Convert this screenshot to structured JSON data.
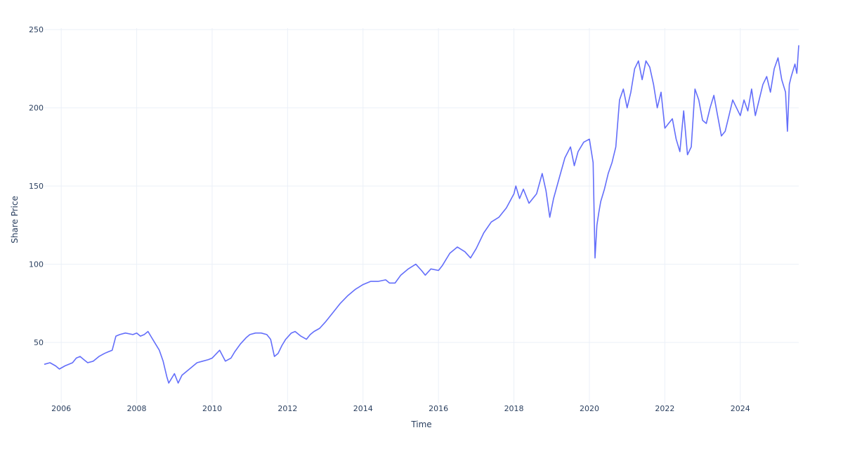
{
  "chart_data": {
    "type": "line",
    "title": "",
    "xlabel": "Time",
    "ylabel": "Share Price",
    "xlim": [
      2005.55,
      2025.55
    ],
    "ylim": [
      11,
      251
    ],
    "x_ticks": [
      2006,
      2008,
      2010,
      2012,
      2014,
      2016,
      2018,
      2020,
      2022,
      2024
    ],
    "x_tick_labels": [
      "2006",
      "2008",
      "2010",
      "2012",
      "2014",
      "2016",
      "2018",
      "2020",
      "2022",
      "2024"
    ],
    "y_ticks": [
      50,
      100,
      150,
      200,
      250
    ],
    "y_tick_labels": [
      "50",
      "100",
      "150",
      "200",
      "250"
    ],
    "grid": true,
    "line_color": "#636efa",
    "series": [
      {
        "x": [
          2005.55,
          2005.7,
          2005.85,
          2005.95,
          2006.1,
          2006.3,
          2006.4,
          2006.5,
          2006.6,
          2006.7,
          2006.85,
          2007.0,
          2007.15,
          2007.25,
          2007.35,
          2007.45,
          2007.55,
          2007.7,
          2007.9,
          2008.0,
          2008.1,
          2008.2,
          2008.3,
          2008.4,
          2008.5,
          2008.6,
          2008.7,
          2008.8,
          2008.85,
          2008.9,
          2009.0,
          2009.1,
          2009.2,
          2009.3,
          2009.4,
          2009.5,
          2009.6,
          2009.75,
          2009.9,
          2010.0,
          2010.2,
          2010.35,
          2010.5,
          2010.6,
          2010.75,
          2010.9,
          2011.0,
          2011.15,
          2011.3,
          2011.45,
          2011.55,
          2011.65,
          2011.75,
          2011.85,
          2011.95,
          2012.1,
          2012.2,
          2012.35,
          2012.5,
          2012.6,
          2012.7,
          2012.85,
          2013.0,
          2013.2,
          2013.4,
          2013.6,
          2013.8,
          2014.0,
          2014.2,
          2014.4,
          2014.6,
          2014.7,
          2014.85,
          2015.0,
          2015.2,
          2015.4,
          2015.55,
          2015.65,
          2015.8,
          2016.0,
          2016.1,
          2016.3,
          2016.5,
          2016.7,
          2016.85,
          2017.0,
          2017.2,
          2017.4,
          2017.6,
          2017.8,
          2018.0,
          2018.05,
          2018.15,
          2018.25,
          2018.4,
          2018.6,
          2018.75,
          2018.85,
          2018.95,
          2019.05,
          2019.2,
          2019.35,
          2019.5,
          2019.6,
          2019.7,
          2019.85,
          2020.0,
          2020.1,
          2020.15,
          2020.2,
          2020.25,
          2020.3,
          2020.4,
          2020.5,
          2020.6,
          2020.7,
          2020.8,
          2020.9,
          2021.0,
          2021.1,
          2021.2,
          2021.3,
          2021.4,
          2021.5,
          2021.6,
          2021.7,
          2021.8,
          2021.9,
          2022.0,
          2022.1,
          2022.2,
          2022.3,
          2022.4,
          2022.5,
          2022.6,
          2022.7,
          2022.8,
          2022.9,
          2023.0,
          2023.1,
          2023.2,
          2023.3,
          2023.4,
          2023.5,
          2023.6,
          2023.7,
          2023.8,
          2023.9,
          2024.0,
          2024.1,
          2024.2,
          2024.3,
          2024.4,
          2024.5,
          2024.6,
          2024.7,
          2024.8,
          2024.9,
          2025.0,
          2025.1,
          2025.2,
          2025.25,
          2025.3,
          2025.35,
          2025.45,
          2025.5,
          2025.55
        ],
        "y": [
          36,
          37,
          35,
          33,
          35,
          37,
          40,
          41,
          39,
          37,
          38,
          41,
          43,
          44,
          45,
          54,
          55,
          56,
          55,
          56,
          54,
          55,
          57,
          53,
          49,
          45,
          38,
          28,
          24,
          26,
          30,
          24,
          29,
          31,
          33,
          35,
          37,
          38,
          39,
          40,
          45,
          38,
          40,
          44,
          49,
          53,
          55,
          56,
          56,
          55,
          52,
          41,
          43,
          48,
          52,
          56,
          57,
          54,
          52,
          55,
          57,
          59,
          63,
          69,
          75,
          80,
          84,
          87,
          89,
          89,
          90,
          88,
          88,
          93,
          97,
          100,
          96,
          93,
          97,
          96,
          99,
          107,
          111,
          108,
          104,
          110,
          120,
          127,
          130,
          136,
          145,
          150,
          142,
          148,
          139,
          145,
          158,
          147,
          130,
          142,
          155,
          168,
          175,
          163,
          172,
          178,
          180,
          165,
          104,
          125,
          133,
          140,
          148,
          158,
          165,
          175,
          205,
          212,
          200,
          210,
          225,
          230,
          218,
          230,
          226,
          215,
          200,
          210,
          187,
          190,
          193,
          180,
          172,
          198,
          170,
          175,
          212,
          205,
          192,
          190,
          200,
          208,
          195,
          182,
          185,
          195,
          205,
          200,
          195,
          205,
          198,
          212,
          195,
          205,
          215,
          220,
          210,
          225,
          232,
          218,
          210,
          185,
          215,
          220,
          228,
          222,
          240
        ]
      }
    ]
  }
}
